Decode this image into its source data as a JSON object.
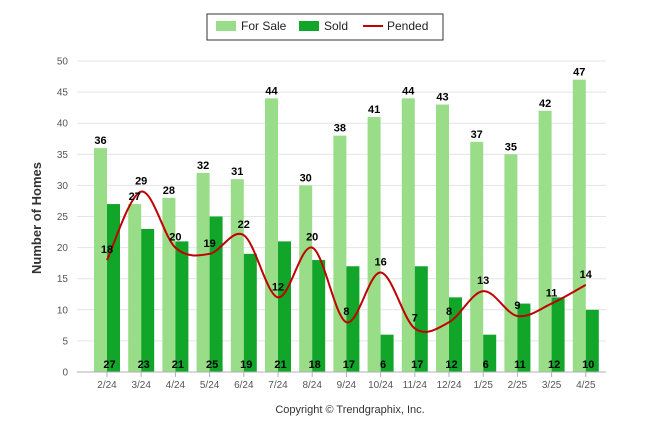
{
  "chart_data": {
    "type": "bar",
    "categories": [
      "2/24",
      "3/24",
      "4/24",
      "5/24",
      "6/24",
      "7/24",
      "8/24",
      "9/24",
      "10/24",
      "11/24",
      "12/24",
      "1/25",
      "2/25",
      "3/25",
      "4/25"
    ],
    "series": [
      {
        "name": "For Sale",
        "type": "bar",
        "color": "#99dd88",
        "values": [
          36,
          27,
          28,
          32,
          31,
          44,
          30,
          38,
          41,
          44,
          43,
          37,
          35,
          42,
          47
        ]
      },
      {
        "name": "Sold",
        "type": "bar",
        "color": "#11a52a",
        "values": [
          27,
          23,
          21,
          25,
          19,
          21,
          18,
          17,
          6,
          17,
          12,
          6,
          11,
          12,
          10
        ]
      },
      {
        "name": "Pended",
        "type": "line",
        "color": "#c00000",
        "values": [
          18,
          29,
          20,
          19,
          22,
          12,
          20,
          8,
          16,
          7,
          8,
          13,
          9,
          11,
          14
        ]
      }
    ],
    "ylabel": "Number of Homes",
    "xlabel": "",
    "ylim": [
      0,
      50
    ],
    "yticks": [
      0,
      5,
      10,
      15,
      20,
      25,
      30,
      35,
      40,
      45,
      50
    ],
    "grid": true,
    "legend_position": "top-center"
  },
  "footer": {
    "copyright": "Copyright © Trendgraphix, Inc."
  }
}
